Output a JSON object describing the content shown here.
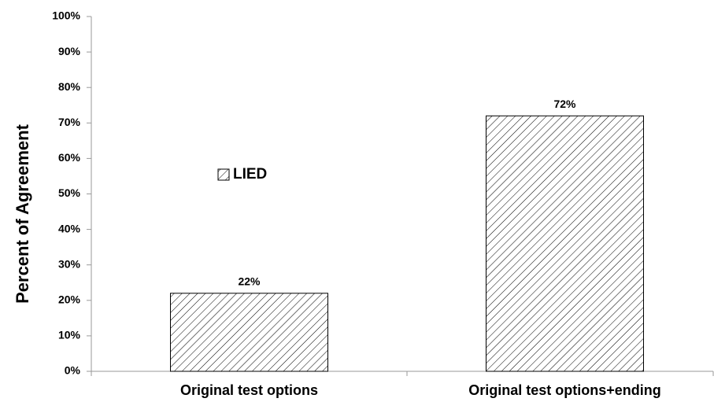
{
  "chart_data": {
    "type": "bar",
    "y_label": "Percent of Agreement",
    "categories": [
      "Original test options",
      "Original test options+ending"
    ],
    "series": [
      {
        "name": "LIED",
        "color": "#000000",
        "values": [
          22,
          72
        ],
        "value_labels": [
          "22%",
          "72%"
        ]
      }
    ],
    "ylim": [
      0,
      100
    ],
    "yticks": [
      {
        "value": 0,
        "label": "0%"
      },
      {
        "value": 10,
        "label": "10%"
      },
      {
        "value": 20,
        "label": "20%"
      },
      {
        "value": 30,
        "label": "30%"
      },
      {
        "value": 40,
        "label": "40%"
      },
      {
        "value": 50,
        "label": "50%"
      },
      {
        "value": 60,
        "label": "60%"
      },
      {
        "value": 70,
        "label": "70%"
      },
      {
        "value": 80,
        "label": "80%"
      },
      {
        "value": 90,
        "label": "90%"
      },
      {
        "value": 100,
        "label": "100%"
      }
    ],
    "grid": false,
    "hatch": true
  }
}
